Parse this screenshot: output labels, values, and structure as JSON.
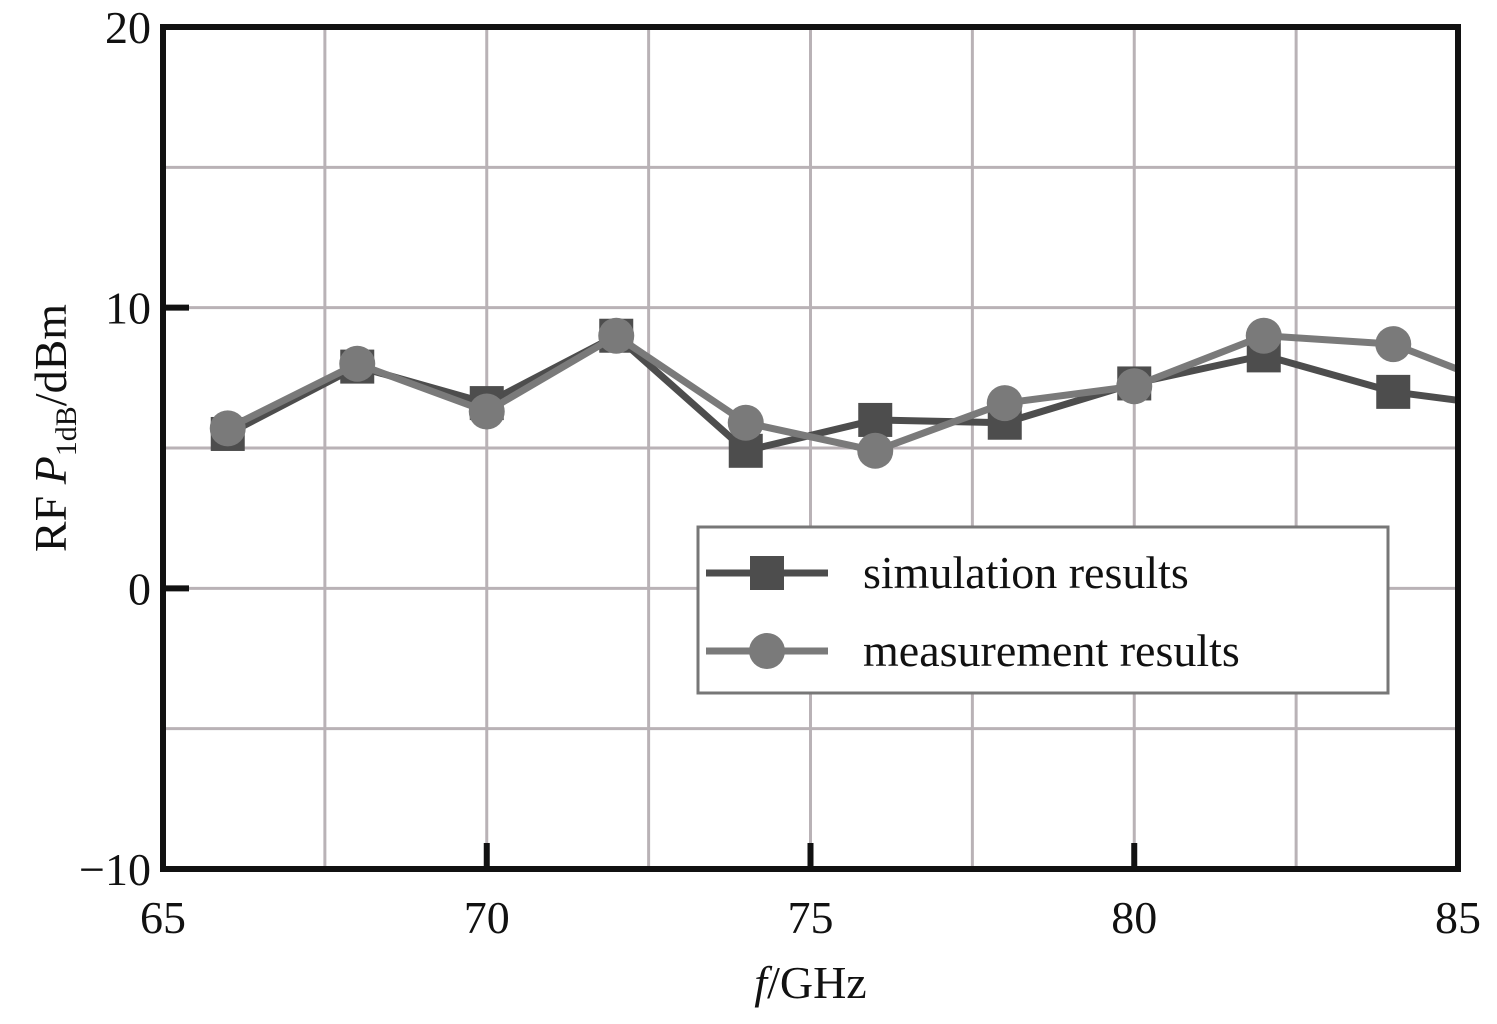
{
  "chart_data": {
    "type": "line",
    "title": "",
    "xlabel": {
      "italic": "f",
      "rest": "/GHz"
    },
    "ylabel": {
      "prefix": "RF ",
      "italic": "P",
      "subscript": "1dB",
      "suffix": "/dBm"
    },
    "xlim": [
      65,
      85
    ],
    "ylim": [
      -10,
      20
    ],
    "xticks": [
      65,
      70,
      75,
      80,
      85
    ],
    "yticks": [
      -10,
      0,
      10,
      20
    ],
    "xtick_labels": [
      "65",
      "70",
      "75",
      "80",
      "85"
    ],
    "ytick_labels": [
      "−10",
      "0",
      "10",
      "20"
    ],
    "grid": true,
    "legend_position": "center-right",
    "series": [
      {
        "name": "simulation results",
        "marker": "square",
        "color": "#4d4d4d",
        "x": [
          66,
          68,
          70,
          72,
          74,
          76,
          78,
          80,
          82,
          84,
          85
        ],
        "y": [
          5.5,
          7.9,
          6.6,
          9.0,
          4.9,
          6.0,
          5.9,
          7.3,
          8.3,
          7.0,
          6.7
        ]
      },
      {
        "name": "measurement results",
        "marker": "circle",
        "color": "#7a7a7a",
        "x": [
          66,
          68,
          70,
          72,
          74,
          76,
          78,
          80,
          82,
          84,
          85
        ],
        "y": [
          5.7,
          8.0,
          6.3,
          9.0,
          5.9,
          4.9,
          6.6,
          7.2,
          9.0,
          8.7,
          7.8
        ]
      }
    ]
  }
}
